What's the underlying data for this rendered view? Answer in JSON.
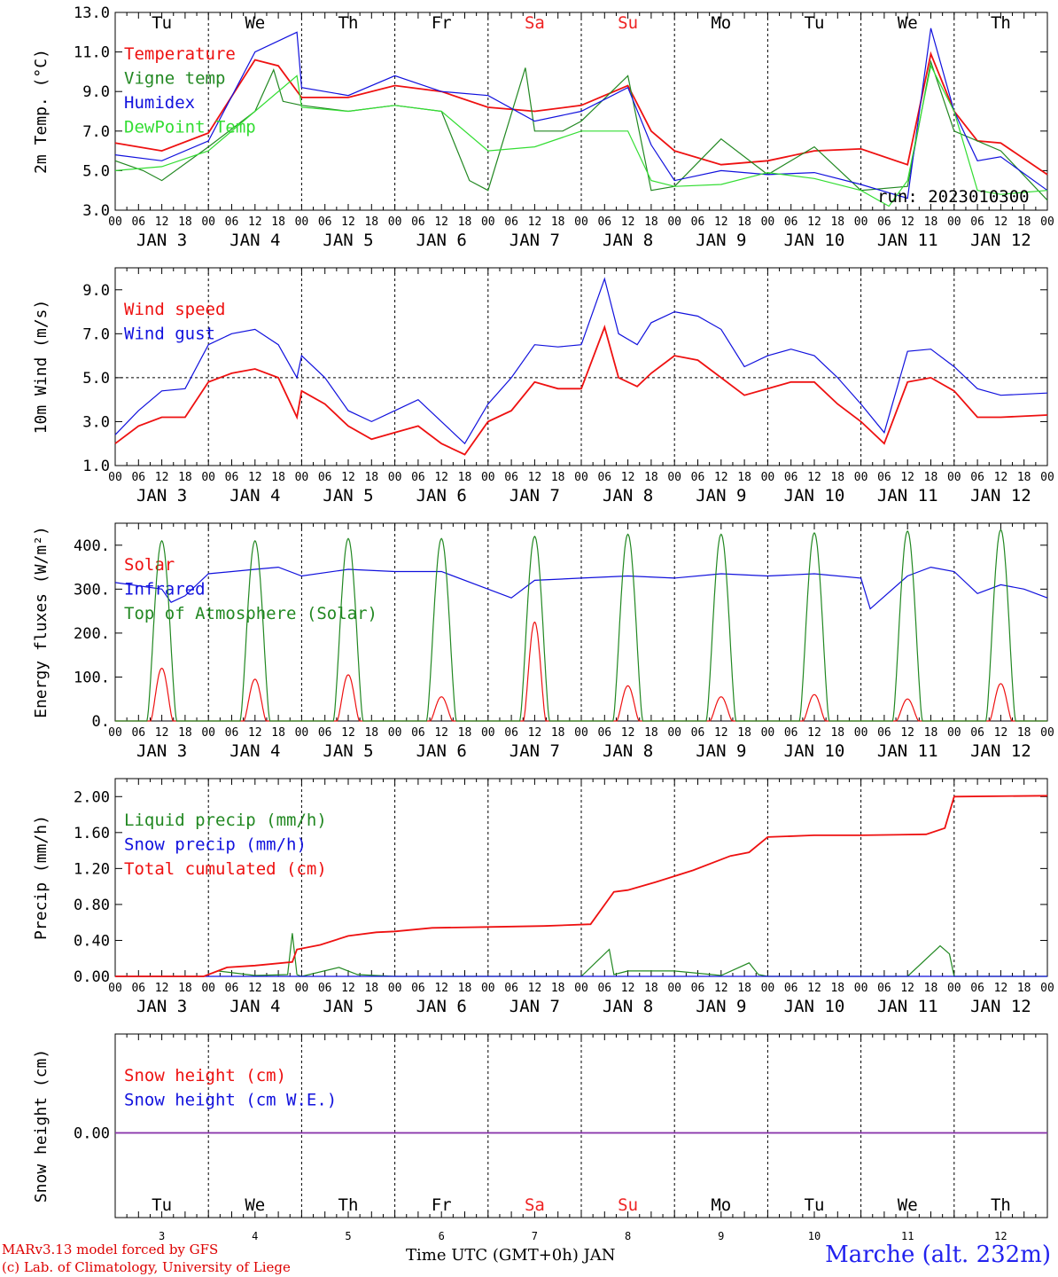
{
  "figure": {
    "run_label": "run: 2023010300",
    "x_title": "Time UTC (GMT+0h) JAN",
    "station": "Marche (alt. 232m)",
    "credit_line1": "MARv3.13 model forced by GFS",
    "credit_line2": "(c) Lab. of Climatology, University of Liege",
    "day_labels": [
      "Tu",
      "We",
      "Th",
      "Fr",
      "Sa",
      "Su",
      "Mo",
      "Tu",
      "We",
      "Th"
    ],
    "weekend_days": [
      "Sa",
      "Su"
    ],
    "date_labels": [
      "JAN  3",
      "JAN  4",
      "JAN  5",
      "JAN  6",
      "JAN  7",
      "JAN  8",
      "JAN  9",
      "JAN 10",
      "JAN 11",
      "JAN 12"
    ],
    "day_numbers": [
      "3",
      "4",
      "5",
      "6",
      "7",
      "8",
      "9",
      "10",
      "11",
      "12"
    ],
    "hour_labels": [
      "00",
      "06",
      "12",
      "18"
    ],
    "colors": {
      "red": "#ee1111",
      "green": "#228822",
      "blue": "#1111dd",
      "lightgreen": "#33dd33",
      "purple": "#8833aa",
      "weekend": "#ee2222"
    }
  },
  "chart_data": [
    {
      "type": "line",
      "ylabel": "2m Temp. (°C)",
      "ylim": [
        3.0,
        13.0
      ],
      "yticks": [
        "3.0",
        "5.0",
        "7.0",
        "9.0",
        "11.0",
        "13.0"
      ],
      "x_unit": "days since JAN 3 00 UTC",
      "series": [
        {
          "name": "Temperature",
          "color": "red",
          "x": [
            0,
            0.5,
            1.0,
            1.5,
            1.75,
            2.0,
            2.5,
            3.0,
            3.5,
            4.0,
            4.5,
            5.0,
            5.5,
            5.75,
            6.0,
            6.5,
            7.0,
            7.5,
            8.0,
            8.5,
            8.75,
            9.0,
            9.25,
            9.5,
            10.0
          ],
          "values": [
            6.4,
            6.0,
            6.9,
            10.6,
            10.3,
            8.7,
            8.7,
            9.3,
            9.0,
            8.2,
            8.0,
            8.3,
            9.3,
            7.0,
            6.0,
            5.3,
            5.5,
            6.0,
            6.1,
            5.3,
            10.9,
            8.0,
            6.5,
            6.4,
            4.8
          ]
        },
        {
          "name": "Vigne temp",
          "color": "green",
          "x": [
            0,
            0.3,
            0.5,
            1.0,
            1.5,
            1.7,
            1.8,
            2.0,
            2.5,
            3.0,
            3.5,
            3.8,
            4.0,
            4.4,
            4.5,
            4.8,
            5.0,
            5.5,
            5.75,
            6.0,
            6.5,
            7.0,
            7.5,
            8.0,
            8.5,
            8.75,
            9.0,
            9.5,
            10.0
          ],
          "values": [
            5.5,
            5.0,
            4.5,
            6.2,
            8.0,
            10.1,
            8.5,
            8.3,
            8.0,
            8.3,
            8.0,
            4.5,
            4.0,
            10.2,
            7.0,
            7.0,
            7.5,
            9.8,
            4.0,
            4.2,
            6.6,
            4.8,
            6.2,
            4.0,
            4.2,
            10.5,
            7.0,
            6.0,
            3.5
          ]
        },
        {
          "name": "Humidex",
          "color": "blue",
          "x": [
            0,
            0.5,
            1.0,
            1.5,
            1.95,
            2.0,
            2.5,
            3.0,
            3.5,
            4.0,
            4.5,
            5.0,
            5.5,
            5.75,
            6.0,
            6.5,
            7.0,
            7.5,
            8.0,
            8.5,
            8.75,
            9.0,
            9.25,
            9.5,
            10.0
          ],
          "values": [
            5.8,
            5.5,
            6.5,
            11.0,
            12.0,
            9.2,
            8.8,
            9.8,
            9.0,
            8.8,
            7.5,
            8.0,
            9.2,
            6.3,
            4.5,
            5.0,
            4.8,
            4.9,
            4.3,
            3.6,
            12.2,
            8.0,
            5.5,
            5.7,
            4.0
          ]
        },
        {
          "name": "DewPoint Temp",
          "color": "lightgreen",
          "x": [
            0,
            0.5,
            1.0,
            1.5,
            1.95,
            2.0,
            2.5,
            3.0,
            3.5,
            4.0,
            4.5,
            5.0,
            5.5,
            5.75,
            6.0,
            6.5,
            7.0,
            7.5,
            8.0,
            8.3,
            8.5,
            8.75,
            9.0,
            9.25,
            9.5,
            10.0
          ],
          "values": [
            5.0,
            5.2,
            6.0,
            8.0,
            9.8,
            8.2,
            8.0,
            8.3,
            8.0,
            6.0,
            6.2,
            7.0,
            7.0,
            4.5,
            4.2,
            4.3,
            4.9,
            4.6,
            4.0,
            3.2,
            4.5,
            10.3,
            8.0,
            4.0,
            3.8,
            4.0
          ]
        }
      ]
    },
    {
      "type": "line",
      "ylabel": "10m Wind (m/s)",
      "ylim": [
        1.0,
        10.0
      ],
      "yticks": [
        "1.0",
        "3.0",
        "5.0",
        "7.0",
        "9.0"
      ],
      "dashed_reference": 5.0,
      "series": [
        {
          "name": "Wind speed",
          "color": "red",
          "x": [
            0,
            0.25,
            0.5,
            0.75,
            1.0,
            1.25,
            1.5,
            1.75,
            1.95,
            2.0,
            2.25,
            2.5,
            2.75,
            3.0,
            3.25,
            3.5,
            3.75,
            4.0,
            4.25,
            4.5,
            4.75,
            5.0,
            5.25,
            5.4,
            5.6,
            5.75,
            6.0,
            6.25,
            6.5,
            6.75,
            7.0,
            7.25,
            7.5,
            7.75,
            8.0,
            8.25,
            8.5,
            8.75,
            9.0,
            9.25,
            9.5,
            10.0
          ],
          "values": [
            2.0,
            2.8,
            3.2,
            3.2,
            4.8,
            5.2,
            5.4,
            5.0,
            3.2,
            4.4,
            3.8,
            2.8,
            2.2,
            2.5,
            2.8,
            2.0,
            1.5,
            3.0,
            3.5,
            4.8,
            4.5,
            4.5,
            7.3,
            5.0,
            4.6,
            5.2,
            6.0,
            5.8,
            5.0,
            4.2,
            4.5,
            4.8,
            4.8,
            3.8,
            3.0,
            2.0,
            4.8,
            5.0,
            4.4,
            3.2,
            3.2,
            3.3
          ]
        },
        {
          "name": "Wind gust",
          "color": "blue",
          "x": [
            0,
            0.25,
            0.5,
            0.75,
            1.0,
            1.25,
            1.5,
            1.75,
            1.95,
            2.0,
            2.25,
            2.5,
            2.75,
            3.0,
            3.25,
            3.5,
            3.75,
            4.0,
            4.25,
            4.5,
            4.75,
            5.0,
            5.25,
            5.4,
            5.6,
            5.75,
            6.0,
            6.25,
            6.5,
            6.75,
            7.0,
            7.25,
            7.5,
            7.75,
            8.0,
            8.25,
            8.5,
            8.75,
            9.0,
            9.25,
            9.5,
            10.0
          ],
          "values": [
            2.4,
            3.5,
            4.4,
            4.5,
            6.5,
            7.0,
            7.2,
            6.5,
            5.0,
            6.0,
            5.0,
            3.5,
            3.0,
            3.5,
            4.0,
            3.0,
            2.0,
            3.8,
            5.0,
            6.5,
            6.4,
            6.5,
            9.5,
            7.0,
            6.5,
            7.5,
            8.0,
            7.8,
            7.2,
            5.5,
            6.0,
            6.3,
            6.0,
            5.0,
            3.8,
            2.5,
            6.2,
            6.3,
            5.5,
            4.5,
            4.2,
            4.3
          ]
        }
      ]
    },
    {
      "type": "line",
      "ylabel": "Energy fluxes (W/m²)",
      "ylim": [
        0,
        450
      ],
      "yticks": [
        "0.",
        "100.",
        "200.",
        "300.",
        "400."
      ],
      "series": [
        {
          "name": "Solar",
          "color": "red",
          "daily_peaks": [
            120,
            95,
            105,
            55,
            225,
            80,
            55,
            60,
            50,
            85
          ]
        },
        {
          "name": "Infrared",
          "color": "blue",
          "x": [
            0,
            0.5,
            0.6,
            0.75,
            1.0,
            1.5,
            1.75,
            2.0,
            2.5,
            3.0,
            3.5,
            4.0,
            4.25,
            4.5,
            5.0,
            5.5,
            6.0,
            6.5,
            7.0,
            7.5,
            8.0,
            8.1,
            8.5,
            8.75,
            9.0,
            9.25,
            9.5,
            9.75,
            10.0
          ],
          "values": [
            315,
            300,
            270,
            285,
            335,
            345,
            350,
            330,
            345,
            340,
            340,
            300,
            280,
            320,
            325,
            330,
            325,
            335,
            330,
            335,
            325,
            255,
            330,
            350,
            340,
            290,
            310,
            300,
            280
          ]
        },
        {
          "name": "Top of Atmosphere (Solar)",
          "color": "green",
          "daily_peaks": [
            410,
            410,
            415,
            415,
            420,
            425,
            425,
            428,
            432,
            435
          ]
        }
      ]
    },
    {
      "type": "line",
      "ylabel": "Precip (mm/h)",
      "ylim": [
        0,
        2.2
      ],
      "yticks": [
        "0.00",
        "0.40",
        "0.80",
        "1.20",
        "1.60",
        "2.00"
      ],
      "series": [
        {
          "name": "Liquid precip (mm/h)",
          "color": "green",
          "x": [
            0,
            0.95,
            1.1,
            1.5,
            1.85,
            1.9,
            1.95,
            2.0,
            2.4,
            2.6,
            3.0,
            4.0,
            5.0,
            5.3,
            5.35,
            5.5,
            6.0,
            6.5,
            6.8,
            6.9,
            7.0,
            8.5,
            8.85,
            8.95,
            9.0,
            10.0
          ],
          "values": [
            0,
            0,
            0.06,
            0.01,
            0.02,
            0.48,
            0.02,
            0,
            0.1,
            0.02,
            0,
            0,
            0,
            0.3,
            0.02,
            0.06,
            0.06,
            0.01,
            0.15,
            0.02,
            0,
            0,
            0.34,
            0.25,
            0,
            0
          ]
        },
        {
          "name": "Snow precip (mm/h)",
          "color": "blue",
          "x": [
            0,
            10
          ],
          "values": [
            0,
            0
          ]
        },
        {
          "name": "Total cumulated (cm)",
          "color": "red",
          "x": [
            0,
            0.95,
            1.2,
            1.5,
            1.9,
            1.95,
            2.2,
            2.5,
            2.8,
            3.0,
            3.4,
            4.0,
            4.6,
            5.1,
            5.35,
            5.5,
            5.8,
            6.2,
            6.6,
            6.8,
            7.0,
            7.5,
            8.0,
            8.7,
            8.9,
            9.0,
            10.0
          ],
          "values": [
            0,
            0,
            0.1,
            0.12,
            0.16,
            0.3,
            0.35,
            0.45,
            0.49,
            0.5,
            0.54,
            0.55,
            0.56,
            0.58,
            0.94,
            0.96,
            1.05,
            1.18,
            1.34,
            1.38,
            1.55,
            1.57,
            1.57,
            1.58,
            1.65,
            2.0,
            2.01
          ]
        }
      ]
    },
    {
      "type": "line",
      "ylabel": "Snow height (cm)",
      "yticks": [
        "0.00"
      ],
      "series": [
        {
          "name": "Snow height (cm)",
          "color": "red",
          "x": [
            0,
            10
          ],
          "values": [
            0,
            0
          ]
        },
        {
          "name": "Snow height (cm W.E.)",
          "color": "blue",
          "x": [
            0,
            10
          ],
          "values": [
            0,
            0
          ]
        }
      ]
    }
  ]
}
